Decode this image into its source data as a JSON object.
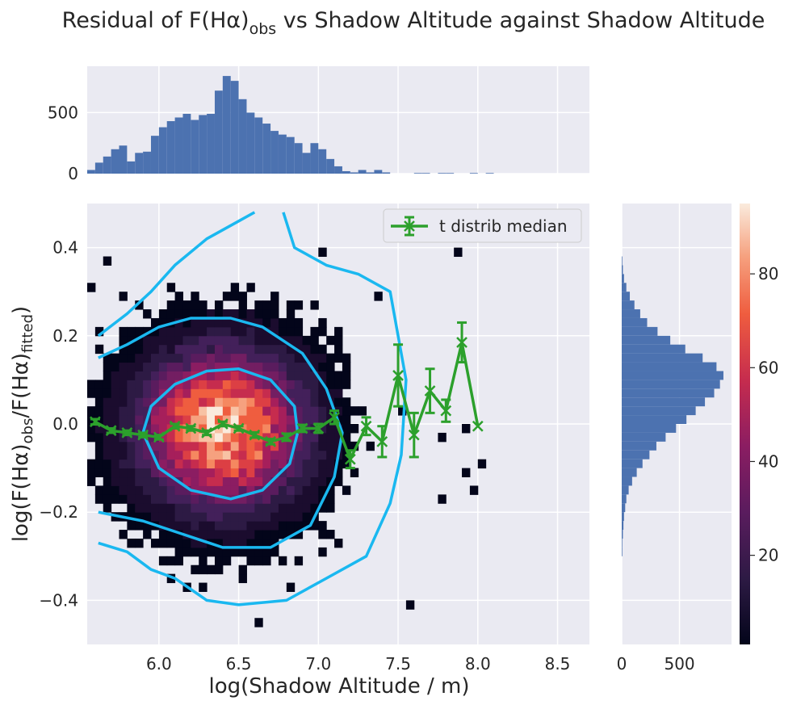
{
  "chart_data": {
    "type": "heatmap",
    "title": {
      "prefix": "Residual of F(Hα)",
      "sub": "obs",
      "suffix": " vs Shadow Altitude against Shadow Altitude"
    },
    "xlabel": "log(Shadow Altitude / m)",
    "ylabel": {
      "p1": "log(F(Hα)",
      "s1": "obs",
      "p2": "/F(Hα)",
      "s2": "fitted",
      "p3": ")"
    },
    "xlim": [
      5.55,
      8.7
    ],
    "ylim": [
      -0.5,
      0.5
    ],
    "x_ticks": [
      6.0,
      6.5,
      7.0,
      7.5,
      8.0,
      8.5
    ],
    "x_tick_labels": [
      "6.0",
      "6.5",
      "7.0",
      "7.5",
      "8.0",
      "8.5"
    ],
    "y_ticks": [
      -0.4,
      -0.2,
      0.0,
      0.2,
      0.4
    ],
    "y_tick_labels": [
      "−0.4",
      "−0.2",
      "0.0",
      "0.2",
      "0.4"
    ],
    "grid": true,
    "legend": {
      "position": "top-right",
      "entries": [
        "t distrib median"
      ]
    },
    "colorbar": {
      "range": [
        1,
        95
      ],
      "ticks": [
        20,
        40,
        60,
        80
      ],
      "tick_labels": [
        "20",
        "40",
        "60",
        "80"
      ],
      "colormap": "rocket"
    },
    "median_series": {
      "name": "t distrib median",
      "color": "#2ca02c",
      "x": [
        5.6,
        5.7,
        5.8,
        5.9,
        6.0,
        6.1,
        6.2,
        6.3,
        6.4,
        6.5,
        6.6,
        6.7,
        6.8,
        6.9,
        7.0,
        7.1,
        7.2,
        7.3,
        7.4,
        7.5,
        7.6,
        7.7,
        7.8,
        7.9,
        8.0
      ],
      "y": [
        0.005,
        -0.015,
        -0.02,
        -0.025,
        -0.03,
        -0.005,
        -0.01,
        -0.02,
        0.0,
        -0.01,
        -0.025,
        -0.04,
        -0.03,
        -0.01,
        -0.01,
        0.015,
        -0.08,
        -0.005,
        -0.04,
        0.11,
        -0.025,
        0.075,
        0.03,
        0.185,
        -0.005
      ],
      "err": [
        0.006,
        0.005,
        0.005,
        0.005,
        0.005,
        0.005,
        0.005,
        0.005,
        0.005,
        0.005,
        0.006,
        0.006,
        0.008,
        0.008,
        0.01,
        0.015,
        0.02,
        0.02,
        0.035,
        0.07,
        0.05,
        0.05,
        0.025,
        0.045,
        0.0
      ]
    },
    "contours": [
      {
        "level": "inner",
        "points": [
          [
            5.9,
            -0.02
          ],
          [
            5.95,
            0.04
          ],
          [
            6.1,
            0.09
          ],
          [
            6.3,
            0.12
          ],
          [
            6.5,
            0.125
          ],
          [
            6.7,
            0.1
          ],
          [
            6.85,
            0.04
          ],
          [
            6.87,
            -0.02
          ],
          [
            6.82,
            -0.09
          ],
          [
            6.65,
            -0.15
          ],
          [
            6.45,
            -0.17
          ],
          [
            6.2,
            -0.15
          ],
          [
            6.0,
            -0.1
          ],
          [
            5.9,
            -0.02
          ]
        ]
      },
      {
        "level": "middle",
        "open_left": true,
        "points": [
          [
            5.62,
            0.15
          ],
          [
            5.8,
            0.18
          ],
          [
            6.0,
            0.22
          ],
          [
            6.2,
            0.24
          ],
          [
            6.45,
            0.24
          ],
          [
            6.65,
            0.22
          ],
          [
            6.9,
            0.16
          ],
          [
            7.05,
            0.08
          ],
          [
            7.15,
            -0.02
          ],
          [
            7.1,
            -0.12
          ],
          [
            6.95,
            -0.23
          ],
          [
            6.7,
            -0.28
          ],
          [
            6.4,
            -0.28
          ],
          [
            6.15,
            -0.25
          ],
          [
            5.9,
            -0.22
          ],
          [
            5.62,
            -0.2
          ]
        ]
      },
      {
        "level": "outer",
        "open_left": true,
        "points": [
          [
            5.62,
            0.2
          ],
          [
            5.8,
            0.25
          ],
          [
            5.95,
            0.3
          ],
          [
            6.1,
            0.36
          ],
          [
            6.3,
            0.42
          ],
          [
            6.5,
            0.46
          ],
          [
            6.6,
            0.48
          ]
        ],
        "points2": [
          [
            6.78,
            0.48
          ],
          [
            6.85,
            0.4
          ],
          [
            7.05,
            0.36
          ],
          [
            7.25,
            0.34
          ],
          [
            7.45,
            0.3
          ],
          [
            7.55,
            0.1
          ],
          [
            7.52,
            -0.07
          ],
          [
            7.45,
            -0.18
          ],
          [
            7.3,
            -0.3
          ],
          [
            7.05,
            -0.35
          ],
          [
            6.8,
            -0.4
          ],
          [
            6.5,
            -0.41
          ],
          [
            6.3,
            -0.4
          ],
          [
            6.1,
            -0.35
          ],
          [
            5.95,
            -0.33
          ],
          [
            5.8,
            -0.29
          ],
          [
            5.62,
            -0.27
          ]
        ]
      }
    ],
    "x_marginal": {
      "y_ticks": [
        0,
        500
      ],
      "y_tick_labels": [
        "0",
        "500"
      ],
      "bin_start": 5.55,
      "bin_width": 0.05,
      "counts": [
        30,
        90,
        140,
        200,
        230,
        100,
        170,
        180,
        310,
        380,
        430,
        460,
        490,
        440,
        480,
        490,
        680,
        800,
        760,
        610,
        500,
        460,
        410,
        350,
        320,
        300,
        250,
        170,
        250,
        200,
        120,
        60,
        20,
        10,
        30,
        10,
        30,
        10,
        0,
        0,
        0,
        5,
        5,
        0,
        5,
        5,
        0,
        0,
        5,
        0,
        5,
        0,
        0
      ]
    },
    "y_marginal": {
      "x_ticks": [
        0,
        500
      ],
      "x_tick_labels": [
        "0",
        "500"
      ],
      "bin_start": -0.5,
      "bin_width": 0.02,
      "counts": [
        0,
        0,
        0,
        0,
        0,
        0,
        0,
        0,
        0,
        0,
        5,
        5,
        10,
        15,
        20,
        30,
        40,
        60,
        90,
        130,
        180,
        240,
        300,
        380,
        470,
        560,
        640,
        720,
        800,
        850,
        880,
        820,
        700,
        550,
        420,
        310,
        220,
        160,
        110,
        70,
        40,
        20,
        10,
        5,
        0,
        0,
        0,
        0,
        0,
        0
      ]
    }
  }
}
